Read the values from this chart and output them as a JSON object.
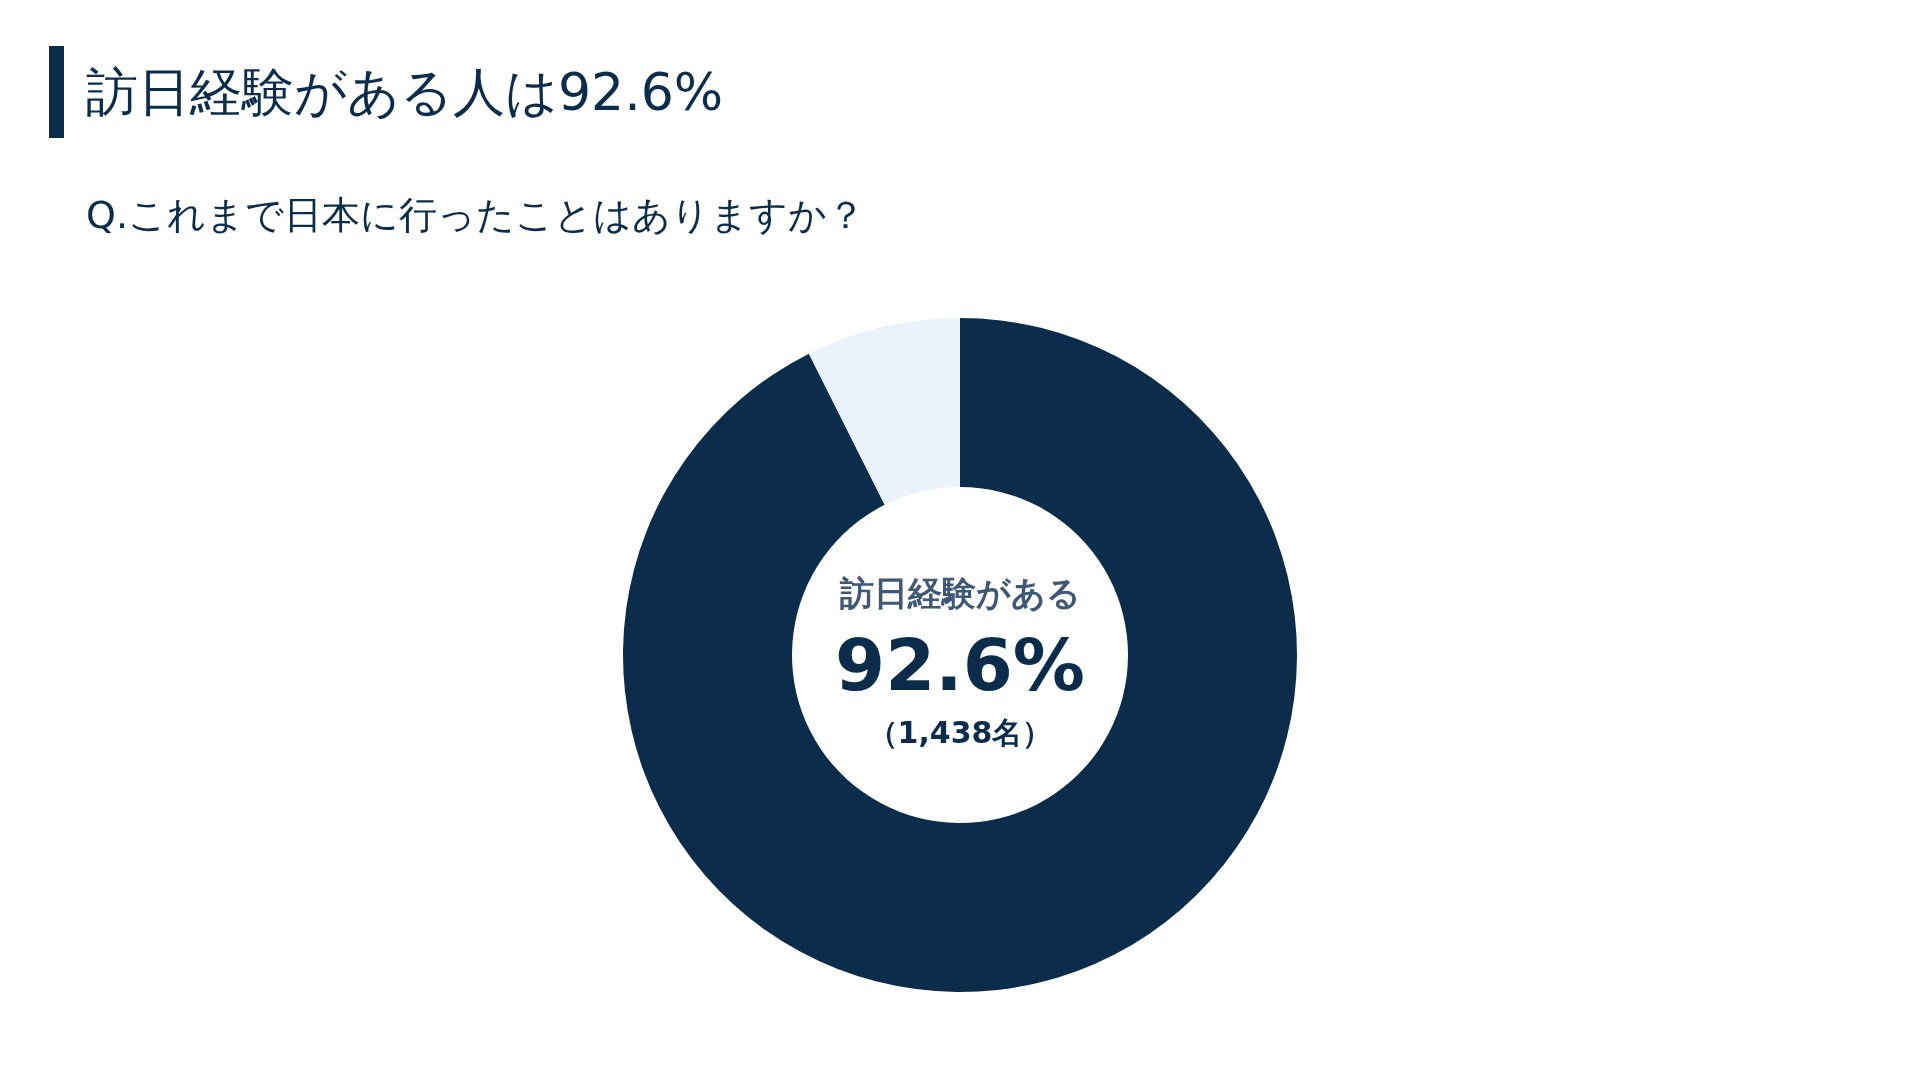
{
  "chart_data": {
    "type": "donut",
    "title": "訪日経験がある人は92.6%",
    "subtitle": "Q.これまで日本に行ったことはありますか？",
    "categories": [
      "訪日経験がある",
      null
    ],
    "values": [
      92.6,
      7.4
    ],
    "colors": [
      "#0b2c4a",
      "#eaf2fb"
    ],
    "value_labels": [
      "92.6%",
      null
    ],
    "annotations": [
      "（1,438名）"
    ]
  }
}
